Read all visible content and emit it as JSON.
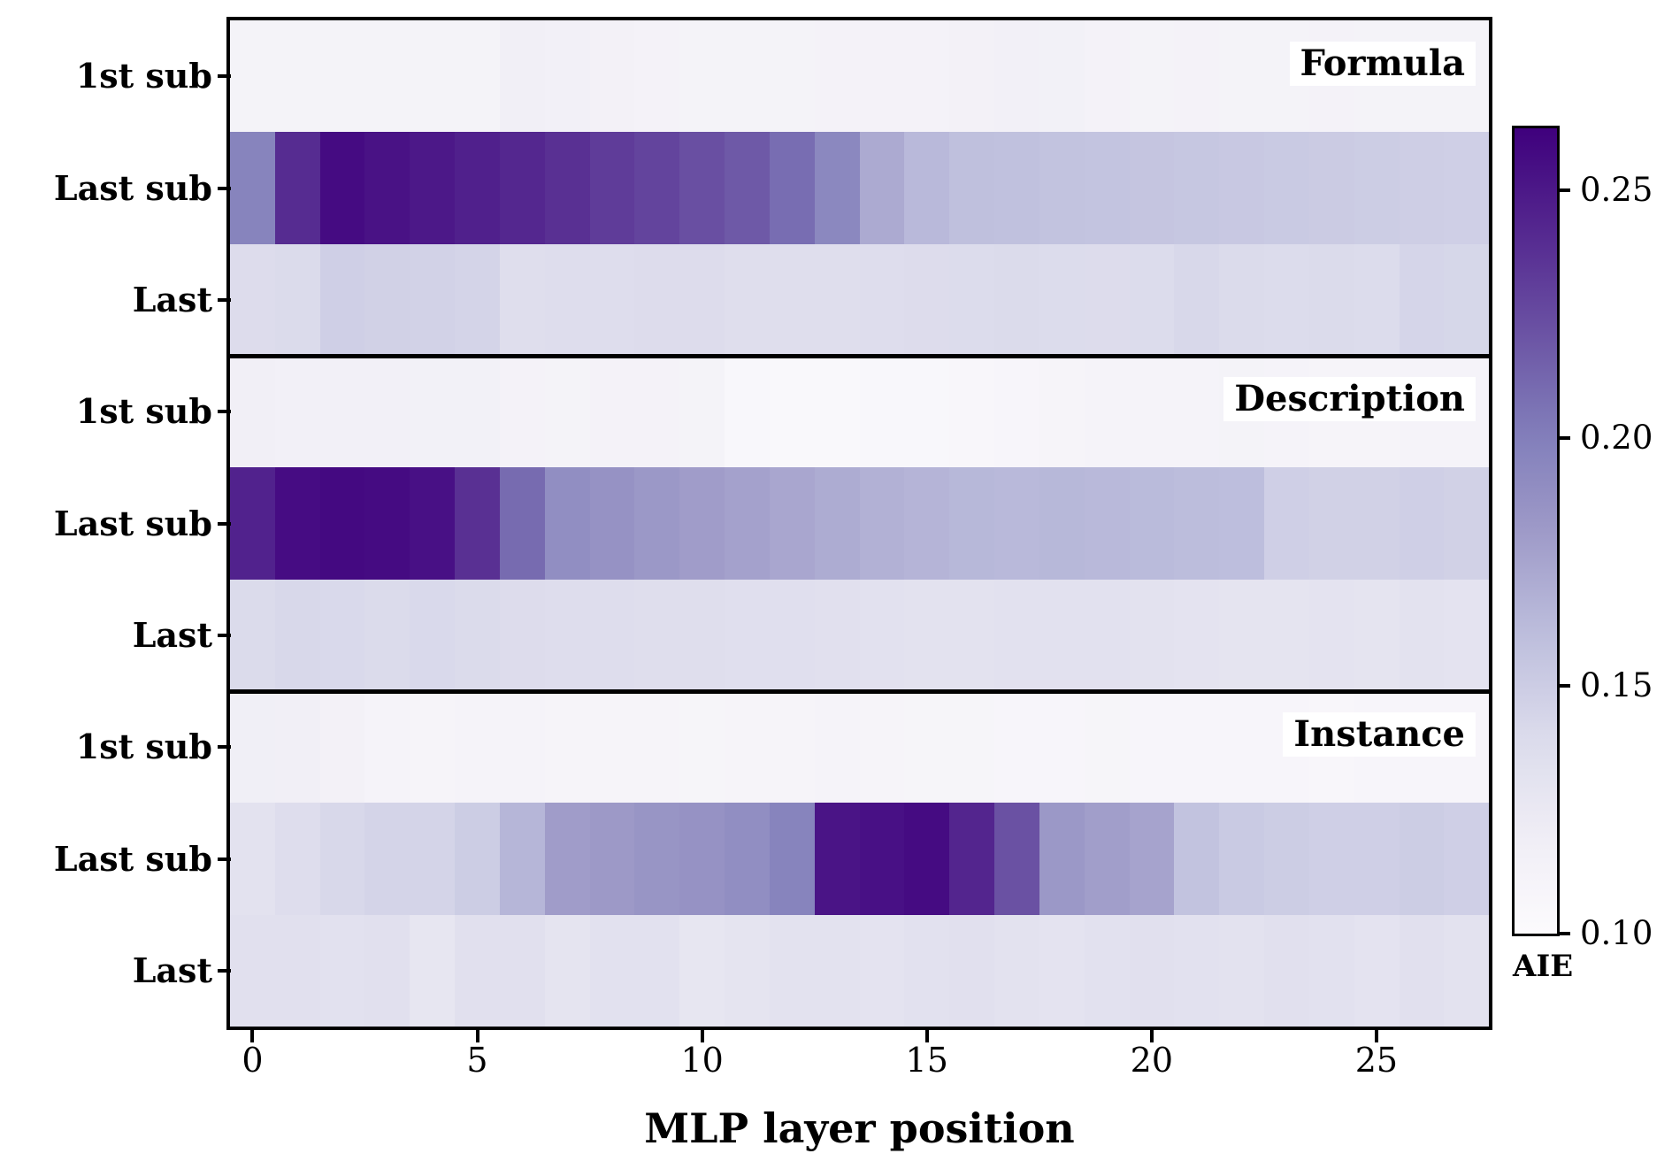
{
  "chart_data": {
    "type": "heatmap",
    "title": "",
    "xlabel": "MLP layer position",
    "n_layers": 28,
    "x_ticks": [
      0,
      5,
      10,
      15,
      20,
      25
    ],
    "x_tick_labels": [
      "0",
      "5",
      "10",
      "15",
      "20",
      "25"
    ],
    "row_labels": [
      "1st sub",
      "Last sub",
      "Last"
    ],
    "grid": false,
    "panels": [
      {
        "title": "Formula",
        "values": [
          [
            0.112,
            0.112,
            0.112,
            0.112,
            0.112,
            0.112,
            0.117,
            0.116,
            0.114,
            0.113,
            0.112,
            0.112,
            0.112,
            0.113,
            0.113,
            0.113,
            0.114,
            0.116,
            0.115,
            0.113,
            0.112,
            0.113,
            0.112,
            0.112,
            0.113,
            0.112,
            0.112,
            0.112
          ],
          [
            0.197,
            0.24,
            0.257,
            0.253,
            0.25,
            0.246,
            0.242,
            0.238,
            0.232,
            0.228,
            0.223,
            0.218,
            0.209,
            0.194,
            0.172,
            0.163,
            0.159,
            0.158,
            0.157,
            0.156,
            0.155,
            0.154,
            0.153,
            0.152,
            0.151,
            0.15,
            0.149,
            0.148
          ],
          [
            0.138,
            0.14,
            0.148,
            0.147,
            0.146,
            0.145,
            0.136,
            0.137,
            0.137,
            0.138,
            0.138,
            0.136,
            0.136,
            0.136,
            0.137,
            0.138,
            0.139,
            0.14,
            0.139,
            0.138,
            0.139,
            0.142,
            0.14,
            0.139,
            0.14,
            0.139,
            0.144,
            0.143
          ]
        ]
      },
      {
        "title": "Description",
        "values": [
          [
            0.117,
            0.116,
            0.116,
            0.116,
            0.115,
            0.115,
            0.113,
            0.112,
            0.113,
            0.113,
            0.112,
            0.106,
            0.105,
            0.105,
            0.106,
            0.106,
            0.107,
            0.108,
            0.11,
            0.111,
            0.111,
            0.111,
            0.112,
            0.111,
            0.11,
            0.11,
            0.111,
            0.111
          ],
          [
            0.245,
            0.256,
            0.258,
            0.257,
            0.254,
            0.238,
            0.21,
            0.19,
            0.187,
            0.183,
            0.18,
            0.177,
            0.174,
            0.171,
            0.168,
            0.166,
            0.164,
            0.163,
            0.164,
            0.163,
            0.162,
            0.161,
            0.16,
            0.148,
            0.147,
            0.147,
            0.148,
            0.147
          ],
          [
            0.14,
            0.142,
            0.141,
            0.14,
            0.141,
            0.14,
            0.138,
            0.137,
            0.137,
            0.136,
            0.136,
            0.135,
            0.135,
            0.134,
            0.133,
            0.132,
            0.132,
            0.133,
            0.133,
            0.133,
            0.132,
            0.131,
            0.13,
            0.13,
            0.131,
            0.13,
            0.132,
            0.131
          ]
        ]
      },
      {
        "title": "Instance",
        "values": [
          [
            0.118,
            0.117,
            0.114,
            0.111,
            0.11,
            0.111,
            0.111,
            0.11,
            0.11,
            0.11,
            0.109,
            0.11,
            0.11,
            0.111,
            0.11,
            0.109,
            0.109,
            0.108,
            0.108,
            0.109,
            0.108,
            0.108,
            0.108,
            0.108,
            0.107,
            0.108,
            0.108,
            0.108
          ],
          [
            0.132,
            0.137,
            0.142,
            0.145,
            0.145,
            0.15,
            0.165,
            0.18,
            0.182,
            0.185,
            0.187,
            0.19,
            0.197,
            0.252,
            0.254,
            0.257,
            0.243,
            0.222,
            0.183,
            0.179,
            0.176,
            0.157,
            0.152,
            0.15,
            0.148,
            0.148,
            0.15,
            0.148
          ],
          [
            0.134,
            0.134,
            0.133,
            0.134,
            0.128,
            0.134,
            0.134,
            0.13,
            0.133,
            0.133,
            0.128,
            0.13,
            0.132,
            0.132,
            0.131,
            0.133,
            0.134,
            0.132,
            0.131,
            0.133,
            0.134,
            0.133,
            0.132,
            0.134,
            0.133,
            0.131,
            0.134,
            0.132
          ]
        ]
      }
    ],
    "colorbar": {
      "label": "AIE",
      "colormap": "Purples",
      "vmin": 0.1,
      "vmax": 0.2625,
      "tick_values": [
        0.25,
        0.2,
        0.15,
        0.1
      ],
      "tick_labels": [
        "0.25",
        "0.20",
        "0.15",
        "0.10"
      ],
      "stops": [
        {
          "pos": 0.0,
          "rgb": [
            252,
            251,
            253
          ]
        },
        {
          "pos": 0.125,
          "rgb": [
            239,
            237,
            245
          ]
        },
        {
          "pos": 0.25,
          "rgb": [
            218,
            218,
            235
          ]
        },
        {
          "pos": 0.375,
          "rgb": [
            188,
            189,
            220
          ]
        },
        {
          "pos": 0.5,
          "rgb": [
            158,
            154,
            200
          ]
        },
        {
          "pos": 0.625,
          "rgb": [
            128,
            125,
            186
          ]
        },
        {
          "pos": 0.75,
          "rgb": [
            106,
            81,
            163
          ]
        },
        {
          "pos": 0.875,
          "rgb": [
            84,
            39,
            143
          ]
        },
        {
          "pos": 1.0,
          "rgb": [
            63,
            0,
            125
          ]
        }
      ]
    },
    "colors": {
      "axis": "#000000",
      "background": "#ffffff",
      "darkest_cell": "#3f007d"
    }
  }
}
